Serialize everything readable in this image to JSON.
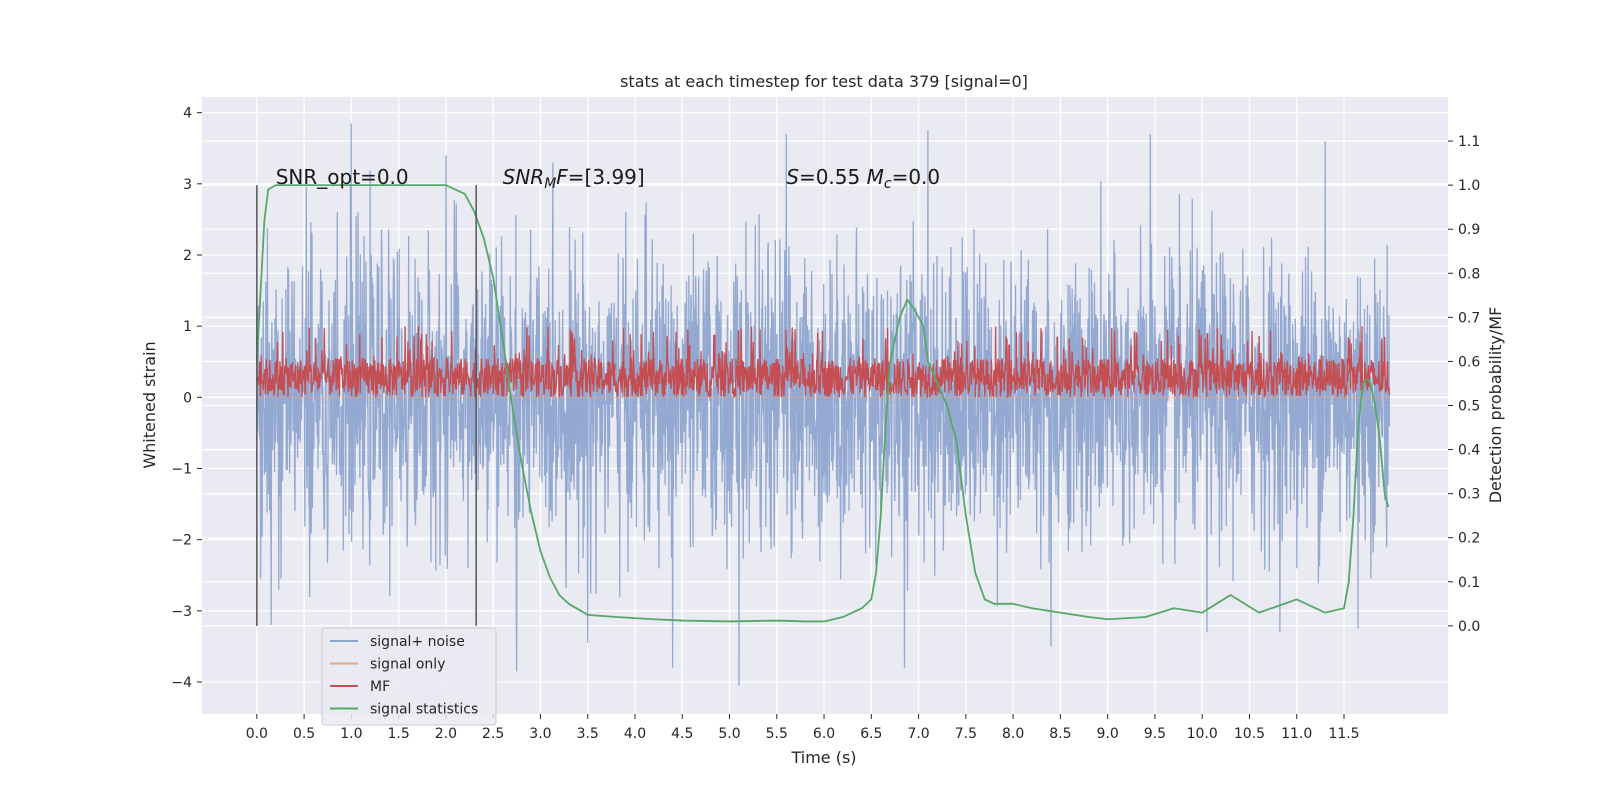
{
  "chart_data": {
    "type": "line",
    "title": "stats at each timestep for test data 379 [signal=0]",
    "xlabel": "Time (s)",
    "ylabel_left": "Whitened strain",
    "ylabel_right": "Detection probability/MF",
    "x_range": [
      -0.58,
      12.6
    ],
    "y_left_range": [
      -4.45,
      4.22
    ],
    "y_right_range": [
      -0.2,
      1.2
    ],
    "x_ticks": [
      0.0,
      0.5,
      1.0,
      1.5,
      2.0,
      2.5,
      3.0,
      3.5,
      4.0,
      4.5,
      5.0,
      5.5,
      6.0,
      6.5,
      7.0,
      7.5,
      8.0,
      8.5,
      9.0,
      9.5,
      10.0,
      10.5,
      11.0,
      11.5
    ],
    "x_tick_labels": [
      "0.0",
      "0.5",
      "1.0",
      "1.5",
      "2.0",
      "2.5",
      "3.0",
      "3.5",
      "4.0",
      "4.5",
      "5.0",
      "5.5",
      "6.0",
      "6.5",
      "7.0",
      "7.5",
      "8.0",
      "8.5",
      "9.0",
      "9.5",
      "10.0",
      "10.5",
      "11.0",
      "11.5"
    ],
    "y_left_ticks": [
      -4,
      -3,
      -2,
      -1,
      0,
      1,
      2,
      3,
      4
    ],
    "y_left_tick_labels": [
      "−4",
      "−3",
      "−2",
      "−1",
      "0",
      "1",
      "2",
      "3",
      "4"
    ],
    "y_right_ticks": [
      0.0,
      0.1,
      0.2,
      0.3,
      0.4,
      0.5,
      0.6,
      0.7,
      0.8,
      0.9,
      1.0,
      1.1
    ],
    "y_right_tick_labels": [
      "0.0",
      "0.1",
      "0.2",
      "0.3",
      "0.4",
      "0.5",
      "0.6",
      "0.7",
      "0.8",
      "0.9",
      "1.0",
      "1.1"
    ],
    "grid": true,
    "legend_position": "bottom-left",
    "window_markers_x": [
      0.0,
      2.32
    ],
    "annotations": [
      {
        "id": "snr-opt",
        "x": 0.2,
        "y": 3.0,
        "parts": [
          {
            "t": "SNR_opt=0.0",
            "italic": false
          }
        ]
      },
      {
        "id": "snr-mf",
        "x": 2.6,
        "y": 3.0,
        "parts": [
          {
            "t": "SNR",
            "italic": true
          },
          {
            "t": "M",
            "italic": true,
            "sub": true
          },
          {
            "t": "F",
            "italic": true
          },
          {
            "t": "=[3.99]",
            "italic": false
          }
        ]
      },
      {
        "id": "stat-s",
        "x": 5.6,
        "y": 3.0,
        "parts": [
          {
            "t": "S",
            "italic": true
          },
          {
            "t": "=0.55   ",
            "italic": false
          },
          {
            "t": "M",
            "italic": true
          },
          {
            "t": "c",
            "italic": true,
            "sub": true
          },
          {
            "t": "=0.0",
            "italic": false
          }
        ]
      }
    ],
    "series": [
      {
        "name": "signal+ noise",
        "color": "#8fa5cf",
        "axis": "left",
        "kind": "noise",
        "x_start": 0.0,
        "x_end": 11.98,
        "std": 1.0,
        "extremes": [
          {
            "x": 1.0,
            "y": 3.85
          },
          {
            "x": 2.0,
            "y": 3.4
          },
          {
            "x": 5.6,
            "y": 3.7
          },
          {
            "x": 7.1,
            "y": 3.75
          },
          {
            "x": 9.45,
            "y": 3.7
          },
          {
            "x": 11.3,
            "y": 3.6
          },
          {
            "x": 6.85,
            "y": -3.8
          },
          {
            "x": 5.1,
            "y": -4.05
          },
          {
            "x": 2.75,
            "y": -3.85
          },
          {
            "x": 4.4,
            "y": -3.8
          },
          {
            "x": 0.15,
            "y": -3.2
          },
          {
            "x": 11.65,
            "y": -3.25
          },
          {
            "x": 3.5,
            "y": -3.45
          },
          {
            "x": 8.4,
            "y": -3.5
          },
          {
            "x": 10.05,
            "y": -3.3
          }
        ]
      },
      {
        "name": "signal only",
        "color": "#e8a686",
        "axis": "left",
        "kind": "flat",
        "value": 0.0
      },
      {
        "name": "MF",
        "color": "#c44e52",
        "axis": "left",
        "kind": "band",
        "x_start": 0.0,
        "x_end": 11.98,
        "low": 0.0,
        "high": 0.55,
        "peak": 1.0
      },
      {
        "name": "signal statistics",
        "color": "#55a868",
        "axis": "right",
        "kind": "line",
        "x": [
          0.0,
          0.05,
          0.08,
          0.12,
          0.2,
          0.3,
          0.5,
          1.0,
          1.5,
          2.0,
          2.1,
          2.2,
          2.3,
          2.4,
          2.5,
          2.6,
          2.7,
          2.8,
          2.9,
          3.0,
          3.1,
          3.2,
          3.3,
          3.5,
          3.8,
          4.2,
          4.5,
          5.0,
          5.5,
          5.8,
          6.0,
          6.2,
          6.4,
          6.5,
          6.55,
          6.6,
          6.65,
          6.7,
          6.8,
          6.88,
          6.95,
          7.0,
          7.05,
          7.1,
          7.2,
          7.3,
          7.4,
          7.5,
          7.6,
          7.7,
          7.8,
          8.0,
          8.2,
          8.5,
          8.8,
          9.0,
          9.4,
          9.7,
          10.0,
          10.3,
          10.6,
          11.0,
          11.3,
          11.5,
          11.55,
          11.6,
          11.65,
          11.7,
          11.75,
          11.78,
          11.83,
          11.88,
          11.93,
          11.97
        ],
        "y": [
          0.6,
          0.8,
          0.92,
          0.99,
          1.0,
          1.0,
          1.0,
          1.0,
          1.0,
          1.0,
          0.99,
          0.98,
          0.94,
          0.88,
          0.79,
          0.65,
          0.5,
          0.37,
          0.26,
          0.17,
          0.11,
          0.07,
          0.05,
          0.025,
          0.02,
          0.015,
          0.012,
          0.01,
          0.012,
          0.01,
          0.01,
          0.02,
          0.04,
          0.06,
          0.12,
          0.25,
          0.45,
          0.6,
          0.7,
          0.74,
          0.72,
          0.7,
          0.68,
          0.6,
          0.55,
          0.5,
          0.42,
          0.25,
          0.12,
          0.06,
          0.05,
          0.05,
          0.04,
          0.03,
          0.02,
          0.015,
          0.02,
          0.04,
          0.03,
          0.07,
          0.03,
          0.06,
          0.03,
          0.04,
          0.1,
          0.25,
          0.45,
          0.55,
          0.56,
          0.55,
          0.5,
          0.42,
          0.3,
          0.27
        ]
      }
    ]
  }
}
